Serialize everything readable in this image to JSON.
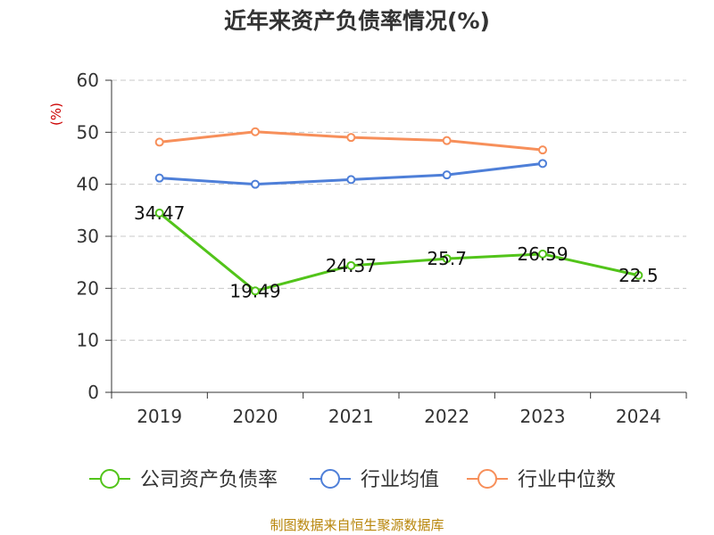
{
  "chart_data": {
    "type": "line",
    "title": "近年来资产负债率情况(%)",
    "ylabel": "(%)",
    "xlabel": "",
    "categories": [
      "2019",
      "2020",
      "2021",
      "2022",
      "2023",
      "2024"
    ],
    "ylim": [
      0,
      60
    ],
    "yticks": [
      0,
      10,
      20,
      30,
      40,
      50,
      60
    ],
    "grid": true,
    "legend_position": "bottom",
    "series": [
      {
        "name": "公司资产负债率",
        "color": "#52c41a",
        "values": [
          34.47,
          19.49,
          24.37,
          25.7,
          26.59,
          22.5
        ],
        "labels": [
          "34.47",
          "19.49",
          "24.37",
          "25.7",
          "26.59",
          "22.5"
        ]
      },
      {
        "name": "行业均值",
        "color": "#4e7fd8",
        "values": [
          41.2,
          40.0,
          40.9,
          41.8,
          44.0,
          null
        ]
      },
      {
        "name": "行业中位数",
        "color": "#f78f5a",
        "values": [
          48.1,
          50.1,
          49.0,
          48.4,
          46.6,
          null
        ]
      }
    ],
    "source": "制图数据来自恒生聚源数据库"
  }
}
